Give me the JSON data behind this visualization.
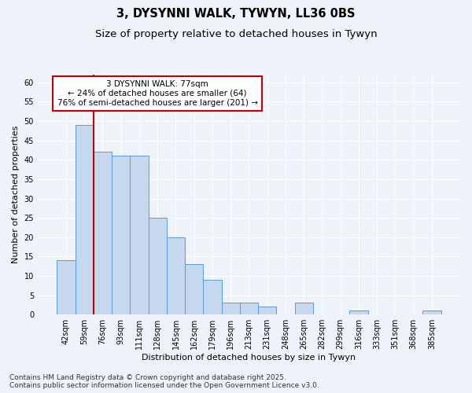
{
  "title_line1": "3, DYSYNNI WALK, TYWYN, LL36 0BS",
  "title_line2": "Size of property relative to detached houses in Tywyn",
  "xlabel": "Distribution of detached houses by size in Tywyn",
  "ylabel": "Number of detached properties",
  "categories": [
    "42sqm",
    "59sqm",
    "76sqm",
    "93sqm",
    "111sqm",
    "128sqm",
    "145sqm",
    "162sqm",
    "179sqm",
    "196sqm",
    "213sqm",
    "231sqm",
    "248sqm",
    "265sqm",
    "282sqm",
    "299sqm",
    "316sqm",
    "333sqm",
    "351sqm",
    "368sqm",
    "385sqm"
  ],
  "values": [
    14,
    49,
    42,
    41,
    41,
    25,
    20,
    13,
    9,
    3,
    3,
    2,
    0,
    3,
    0,
    0,
    1,
    0,
    0,
    0,
    1
  ],
  "bar_color": "#c5d8ed",
  "bar_edge_color": "#5b9bd5",
  "highlight_bar_index": 2,
  "highlight_line_color": "#c00000",
  "ylim": [
    0,
    62
  ],
  "yticks": [
    0,
    5,
    10,
    15,
    20,
    25,
    30,
    35,
    40,
    45,
    50,
    55,
    60
  ],
  "annotation_text": "3 DYSYNNI WALK: 77sqm\n← 24% of detached houses are smaller (64)\n76% of semi-detached houses are larger (201) →",
  "annotation_box_color": "#ffffff",
  "annotation_box_edge_color": "#c00000",
  "background_color": "#eef2f9",
  "grid_color": "#ffffff",
  "footer_text": "Contains HM Land Registry data © Crown copyright and database right 2025.\nContains public sector information licensed under the Open Government Licence v3.0.",
  "title_fontsize": 10.5,
  "subtitle_fontsize": 9.5,
  "axis_label_fontsize": 8,
  "tick_fontsize": 7,
  "annotation_fontsize": 7.5,
  "footer_fontsize": 6.5
}
